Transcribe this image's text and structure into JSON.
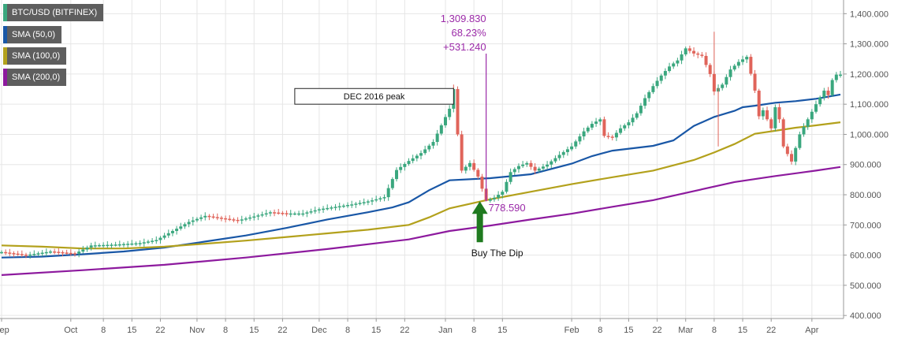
{
  "legend": [
    {
      "label": "BTC/USD (BITFINEX)",
      "color": "#3aa77e"
    },
    {
      "label": "SMA (50,0)",
      "color": "#1957a6"
    },
    {
      "label": "SMA (100,0)",
      "color": "#b3a11c"
    },
    {
      "label": "SMA (200,0)",
      "color": "#8d1a9e"
    }
  ],
  "chart_data": {
    "type": "candlestick",
    "y_ticks": [
      "1,400.000",
      "1,300.000",
      "1,200.000",
      "1,100.000",
      "1,000.000",
      "900.000",
      "800.000",
      "700.000",
      "600.000",
      "500.000",
      "400.000"
    ],
    "ylim": [
      390,
      1440
    ],
    "x_ticks": [
      {
        "label": "Sep",
        "day": 0
      },
      {
        "label": "Oct",
        "day": 17
      },
      {
        "label": "8",
        "day": 25
      },
      {
        "label": "15",
        "day": 32
      },
      {
        "label": "22",
        "day": 39
      },
      {
        "label": "Nov",
        "day": 48
      },
      {
        "label": "8",
        "day": 55
      },
      {
        "label": "15",
        "day": 62
      },
      {
        "label": "22",
        "day": 69
      },
      {
        "label": "Dec",
        "day": 78
      },
      {
        "label": "8",
        "day": 85
      },
      {
        "label": "15",
        "day": 92
      },
      {
        "label": "22",
        "day": 99
      },
      {
        "label": "Jan",
        "day": 109
      },
      {
        "label": "8",
        "day": 116
      },
      {
        "label": "15",
        "day": 123
      },
      {
        "label": "Feb",
        "day": 140
      },
      {
        "label": "8",
        "day": 147
      },
      {
        "label": "15",
        "day": 154
      },
      {
        "label": "22",
        "day": 161
      },
      {
        "label": "Mar",
        "day": 168
      },
      {
        "label": "8",
        "day": 175
      },
      {
        "label": "15",
        "day": 182
      },
      {
        "label": "22",
        "day": 189
      },
      {
        "label": "Apr",
        "day": 199
      }
    ],
    "x_range_days": [
      0,
      206
    ],
    "price_points": [
      [
        0,
        610
      ],
      [
        6,
        600
      ],
      [
        12,
        612
      ],
      [
        18,
        605
      ],
      [
        22,
        632
      ],
      [
        28,
        635
      ],
      [
        34,
        640
      ],
      [
        38,
        650
      ],
      [
        42,
        680
      ],
      [
        46,
        710
      ],
      [
        50,
        730
      ],
      [
        54,
        722
      ],
      [
        58,
        715
      ],
      [
        62,
        728
      ],
      [
        66,
        742
      ],
      [
        70,
        738
      ],
      [
        74,
        738
      ],
      [
        78,
        752
      ],
      [
        82,
        760
      ],
      [
        86,
        768
      ],
      [
        90,
        778
      ],
      [
        94,
        792
      ],
      [
        97,
        882
      ],
      [
        100,
        912
      ],
      [
        103,
        938
      ],
      [
        106,
        975
      ],
      [
        108,
        1030
      ],
      [
        110,
        1085
      ],
      [
        111,
        1150
      ],
      [
        112,
        1000
      ],
      [
        113,
        880
      ],
      [
        115,
        905
      ],
      [
        117,
        860
      ],
      [
        118,
        820
      ],
      [
        119,
        780
      ],
      [
        121,
        790
      ],
      [
        123,
        810
      ],
      [
        125,
        875
      ],
      [
        127,
        895
      ],
      [
        129,
        905
      ],
      [
        131,
        880
      ],
      [
        134,
        900
      ],
      [
        137,
        932
      ],
      [
        140,
        960
      ],
      [
        143,
        1010
      ],
      [
        145,
        1035
      ],
      [
        147,
        1050
      ],
      [
        148,
        995
      ],
      [
        150,
        990
      ],
      [
        152,
        1020
      ],
      [
        154,
        1040
      ],
      [
        156,
        1070
      ],
      [
        158,
        1120
      ],
      [
        160,
        1160
      ],
      [
        162,
        1195
      ],
      [
        164,
        1225
      ],
      [
        166,
        1245
      ],
      [
        168,
        1285
      ],
      [
        170,
        1268
      ],
      [
        172,
        1260
      ],
      [
        174,
        1200
      ],
      [
        175,
        1142
      ],
      [
        177,
        1165
      ],
      [
        179,
        1215
      ],
      [
        181,
        1240
      ],
      [
        183,
        1257
      ],
      [
        185,
        1145
      ],
      [
        186,
        1060
      ],
      [
        187,
        1080
      ],
      [
        189,
        1020
      ],
      [
        190,
        1090
      ],
      [
        191,
        1050
      ],
      [
        192,
        960
      ],
      [
        194,
        910
      ],
      [
        196,
        1000
      ],
      [
        198,
        1050
      ],
      [
        200,
        1100
      ],
      [
        202,
        1145
      ],
      [
        203,
        1130
      ],
      [
        204,
        1180
      ],
      [
        205,
        1198
      ]
    ],
    "series": [
      {
        "name": "SMA (50,0)",
        "color": "#1957a6",
        "points": [
          [
            0,
            592
          ],
          [
            10,
            595
          ],
          [
            20,
            603
          ],
          [
            30,
            612
          ],
          [
            40,
            625
          ],
          [
            50,
            645
          ],
          [
            60,
            665
          ],
          [
            70,
            690
          ],
          [
            80,
            718
          ],
          [
            90,
            742
          ],
          [
            96,
            758
          ],
          [
            100,
            775
          ],
          [
            105,
            815
          ],
          [
            110,
            848
          ],
          [
            120,
            855
          ],
          [
            130,
            868
          ],
          [
            140,
            903
          ],
          [
            145,
            928
          ],
          [
            150,
            946
          ],
          [
            160,
            962
          ],
          [
            165,
            980
          ],
          [
            170,
            1028
          ],
          [
            175,
            1058
          ],
          [
            180,
            1078
          ],
          [
            182,
            1090
          ],
          [
            185,
            1095
          ],
          [
            190,
            1105
          ],
          [
            195,
            1110
          ],
          [
            200,
            1118
          ],
          [
            206,
            1132
          ]
        ]
      },
      {
        "name": "SMA (100,0)",
        "color": "#b3a11c",
        "points": [
          [
            0,
            632
          ],
          [
            10,
            628
          ],
          [
            20,
            622
          ],
          [
            30,
            622
          ],
          [
            40,
            628
          ],
          [
            50,
            638
          ],
          [
            60,
            648
          ],
          [
            70,
            660
          ],
          [
            80,
            672
          ],
          [
            90,
            684
          ],
          [
            100,
            700
          ],
          [
            105,
            725
          ],
          [
            110,
            755
          ],
          [
            120,
            785
          ],
          [
            130,
            810
          ],
          [
            140,
            835
          ],
          [
            150,
            858
          ],
          [
            160,
            880
          ],
          [
            170,
            915
          ],
          [
            175,
            940
          ],
          [
            180,
            968
          ],
          [
            185,
            1002
          ],
          [
            190,
            1012
          ],
          [
            195,
            1022
          ],
          [
            200,
            1030
          ],
          [
            206,
            1040
          ]
        ]
      },
      {
        "name": "SMA (200,0)",
        "color": "#8d1a9e",
        "points": [
          [
            0,
            534
          ],
          [
            20,
            550
          ],
          [
            40,
            568
          ],
          [
            60,
            592
          ],
          [
            80,
            620
          ],
          [
            100,
            652
          ],
          [
            110,
            680
          ],
          [
            120,
            698
          ],
          [
            130,
            718
          ],
          [
            140,
            737
          ],
          [
            150,
            760
          ],
          [
            160,
            782
          ],
          [
            170,
            812
          ],
          [
            180,
            842
          ],
          [
            190,
            862
          ],
          [
            200,
            880
          ],
          [
            206,
            892
          ]
        ]
      }
    ],
    "annotations": {
      "peak_box": {
        "label": "DEC 2016 peak",
        "day_start": 72,
        "day_end": 111,
        "y_top": 1152,
        "y_bottom": 1100
      },
      "high": {
        "values": [
          "1,309.830",
          "68.23%",
          "+531.240"
        ],
        "day": 119
      },
      "low": {
        "value": "778.590"
      },
      "buy": {
        "label": "Buy The Dip",
        "day": 119
      }
    },
    "up_color": "#3aa77e",
    "down_color": "#e0645a"
  }
}
